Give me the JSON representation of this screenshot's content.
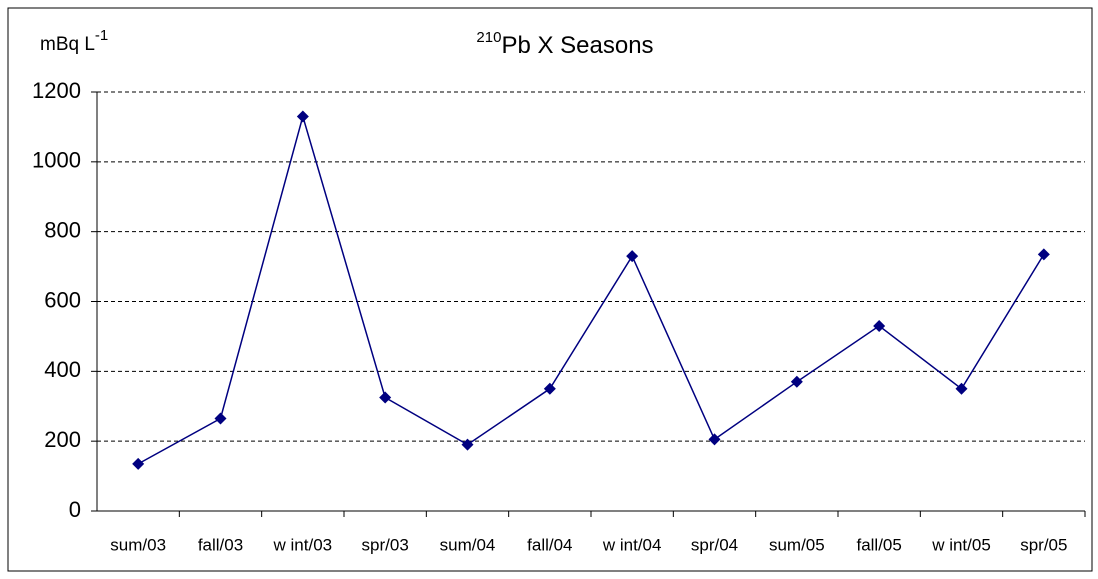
{
  "chart_data": {
    "type": "line",
    "title_superscript": "210",
    "title": "Pb X Seasons",
    "y_label": "mBq L",
    "y_label_superscript": "-1",
    "categories": [
      "sum/03",
      "fall/03",
      "w int/03",
      "spr/03",
      "sum/04",
      "fall/04",
      "w int/04",
      "spr/04",
      "sum/05",
      "fall/05",
      "w int/05",
      "spr/05"
    ],
    "series": [
      {
        "color": "#000080",
        "values": [
          135,
          265,
          1130,
          325,
          190,
          350,
          730,
          205,
          370,
          530,
          350,
          735
        ]
      }
    ],
    "ylim": [
      0,
      1200
    ],
    "yticks": [
      0,
      200,
      400,
      600,
      800,
      1000,
      1200
    ],
    "grid": true
  }
}
